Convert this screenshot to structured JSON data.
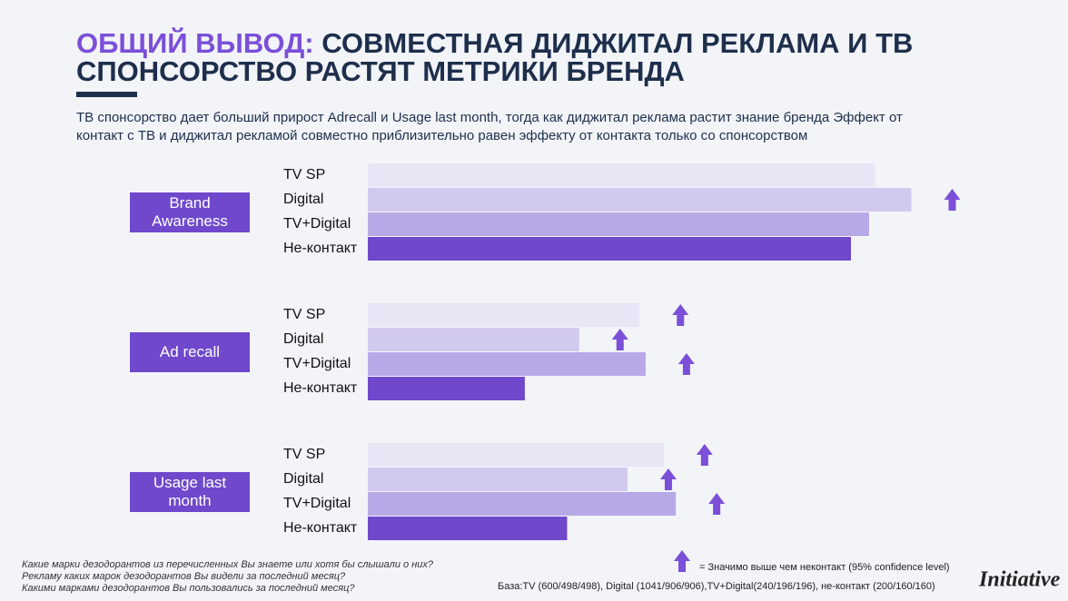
{
  "header": {
    "title_accent": "ОБЩИЙ ВЫВОД:",
    "title_rest": "СОВМЕСТНАЯ ДИДЖИТАЛ РЕКЛАМА И ТВ",
    "title_line2": "СПОНСОРСТВО РАСТЯТ МЕТРИКИ БРЕНДА",
    "subtitle_lines": [
      "ТВ спонсорство дает больший прирост Adrecall и Usage last month, тогда как диджитал реклама растит знание бренда Эффект от",
      "контакт с ТВ и диджитал рекламой совместно приблизительно равен эффекту от контакта только со спонсорством"
    ]
  },
  "chart_data": {
    "type": "bar",
    "orientation": "horizontal",
    "xlim": [
      0,
      100
    ],
    "categories": [
      "Brand Awareness",
      "Ad recall",
      "Usage last month"
    ],
    "series": [
      {
        "name": "TV SP",
        "color": "#e9e5f5",
        "values": [
          84,
          45,
          49
        ],
        "significant": [
          false,
          true,
          true
        ]
      },
      {
        "name": "Digital",
        "color": "#d2c9ef",
        "values": [
          90,
          35,
          43
        ],
        "significant": [
          true,
          true,
          true
        ]
      },
      {
        "name": "TV+Digital",
        "color": "#b7a9e6",
        "values": [
          83,
          46,
          51
        ],
        "significant": [
          false,
          true,
          true
        ]
      },
      {
        "name": "Не-контакт",
        "color": "#6f48cc",
        "values": [
          80,
          26,
          33
        ],
        "significant": [
          false,
          false,
          false
        ]
      }
    ],
    "significance_note": "= Значимо выше чем неконтакт (95% confidence level)"
  },
  "footer": {
    "questions": [
      "Какие марки дезодорантов из перечисленных Вы знаете или хотя бы слышали о них?",
      "Рекламу каких марок дезодорантов Вы видели за последний месяц?",
      "Какими марками дезодорантов Вы пользовались за последний месяц?"
    ],
    "base": "База:TV (600/498/498), Digital (1041/906/906),TV+Digital(240/196/196), не-контакт (200/160/160)",
    "logo": "Initiative"
  }
}
